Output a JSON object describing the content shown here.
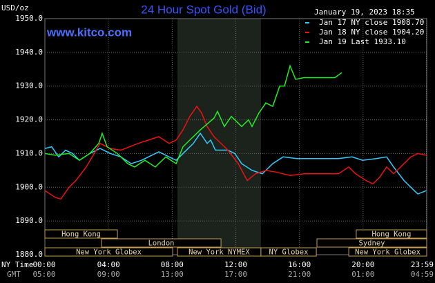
{
  "chart_data": {
    "type": "line",
    "title": "24 Hour Spot Gold (Bid)",
    "timestamp": "January 19, 2023 18:35",
    "source": "www.kitco.com",
    "y_label": "USD/oz",
    "x_label": "NY Time",
    "x2_label": "GMT",
    "grid": true,
    "xlim": [
      0,
      24
    ],
    "ylim": [
      1880,
      1950
    ],
    "yticks": [
      {
        "value": 1880,
        "label": "1880.0"
      },
      {
        "value": 1890,
        "label": "1890.0"
      },
      {
        "value": 1900,
        "label": "1900.0"
      },
      {
        "value": 1910,
        "label": "1910.0"
      },
      {
        "value": 1920,
        "label": "1920.0"
      },
      {
        "value": 1930,
        "label": "1930.0"
      },
      {
        "value": 1940,
        "label": "1940.0"
      },
      {
        "value": 1950,
        "label": "1950.0"
      }
    ],
    "xticks": [
      {
        "value": 0,
        "label": "00:00"
      },
      {
        "value": 4,
        "label": "04:00"
      },
      {
        "value": 8,
        "label": "08:00"
      },
      {
        "value": 12,
        "label": "12:00"
      },
      {
        "value": 16,
        "label": "16:00"
      },
      {
        "value": 20,
        "label": "20:00"
      },
      {
        "value": 23.98,
        "label": "23:59"
      }
    ],
    "gmt_labels": [
      "05:00",
      "09:00",
      "13:00",
      "17:00",
      "21:00",
      "01:00",
      "04:59"
    ],
    "highlight_range": [
      8.33,
      13.58
    ],
    "sessions": [
      {
        "label": "Hong Kong",
        "start": 0,
        "end": 4.56,
        "row": 0
      },
      {
        "label": "Hong Kong",
        "start": 19.57,
        "end": 24,
        "row": 0
      },
      {
        "label": "London",
        "start": 3.56,
        "end": 11.07,
        "row": 1
      },
      {
        "label": "Sydney",
        "start": 17.1,
        "end": 24,
        "row": 1
      },
      {
        "label": "New York Globex",
        "start": 0,
        "end": 8.03,
        "row": 2
      },
      {
        "label": "New York NYMEX",
        "start": 8.33,
        "end": 13.58,
        "row": 2
      },
      {
        "label": "NY Globex",
        "start": 13.58,
        "end": 17.06,
        "row": 2
      },
      {
        "label": "New York Globex",
        "start": 19.1,
        "end": 24,
        "row": 2
      }
    ],
    "series": [
      {
        "name": "Jan 17 NY close 1908.70",
        "color": "#33ccff",
        "x": [
          0,
          0.43,
          0.87,
          1.3,
          1.74,
          2.17,
          2.82,
          3.47,
          4.12,
          4.77,
          5.43,
          6.08,
          6.51,
          7.16,
          7.81,
          8.25,
          8.68,
          9.33,
          9.77,
          10.2,
          10.42,
          10.72,
          11.5,
          11.94,
          12.37,
          13.02,
          13.67,
          14.32,
          14.97,
          15.84,
          17.14,
          18.45,
          19.31,
          19.97,
          20.83,
          21.48,
          21.92,
          22.57,
          23.22,
          23.44,
          23.98
        ],
        "values": [
          1911.5,
          1912,
          1909,
          1911,
          1910,
          1908,
          1910,
          1911.5,
          1910,
          1909,
          1907,
          1908,
          1909,
          1910.5,
          1909,
          1908,
          1910,
          1913,
          1916,
          1913,
          1914,
          1911,
          1911,
          1910,
          1907,
          1905,
          1904,
          1907,
          1909,
          1908.5,
          1908.5,
          1908.5,
          1909,
          1908,
          1908.5,
          1909,
          1906,
          1902,
          1899,
          1898,
          1899
        ]
      },
      {
        "name": "Jan 18 NY close 1904.20",
        "color": "#ee1111",
        "x": [
          0,
          0.65,
          1.0,
          1.52,
          1.95,
          2.6,
          3.47,
          4.12,
          4.77,
          5.86,
          6.51,
          7.16,
          7.81,
          8.25,
          8.68,
          9.11,
          9.55,
          9.85,
          10.2,
          10.63,
          11.07,
          11.5,
          12.15,
          12.72,
          13.24,
          13.89,
          14.54,
          15.41,
          16.28,
          17.58,
          18.45,
          19.1,
          19.53,
          20.18,
          20.62,
          21.05,
          21.48,
          21.92,
          22.57,
          23.0,
          23.44,
          23.98
        ],
        "values": [
          1899,
          1897,
          1896.5,
          1900,
          1902,
          1906,
          1913,
          1911.5,
          1911,
          1913,
          1914,
          1915,
          1913,
          1914,
          1917,
          1921,
          1924,
          1922,
          1918,
          1915,
          1913,
          1911,
          1907,
          1902,
          1904,
          1905,
          1904.5,
          1903.5,
          1904,
          1904,
          1904,
          1906,
          1904,
          1902,
          1901,
          1903,
          1906,
          1904,
          1907,
          1909,
          1910,
          1909.5
        ]
      },
      {
        "name": "Jan 19 Last 1933.10",
        "color": "#22ee22",
        "x": [
          0,
          0.65,
          1.52,
          2.17,
          2.82,
          3.39,
          3.6,
          3.91,
          4.56,
          5.21,
          5.64,
          6.29,
          6.94,
          7.6,
          8.25,
          8.68,
          9.11,
          9.77,
          10.63,
          10.85,
          11.28,
          11.72,
          12.37,
          12.8,
          13.02,
          13.45,
          13.89,
          14.32,
          14.76,
          15.06,
          15.41,
          15.76,
          16.28,
          17.14,
          18.23,
          18.66
        ],
        "values": [
          1910,
          1909.5,
          1910,
          1908,
          1910,
          1913,
          1916,
          1912,
          1910,
          1907,
          1906,
          1908,
          1906,
          1909,
          1907,
          1912,
          1914,
          1917,
          1920.5,
          1922.5,
          1918,
          1921,
          1918,
          1920,
          1918,
          1922,
          1925,
          1924,
          1930,
          1930,
          1936,
          1932,
          1932.5,
          1932.5,
          1932.5,
          1934
        ]
      }
    ]
  }
}
